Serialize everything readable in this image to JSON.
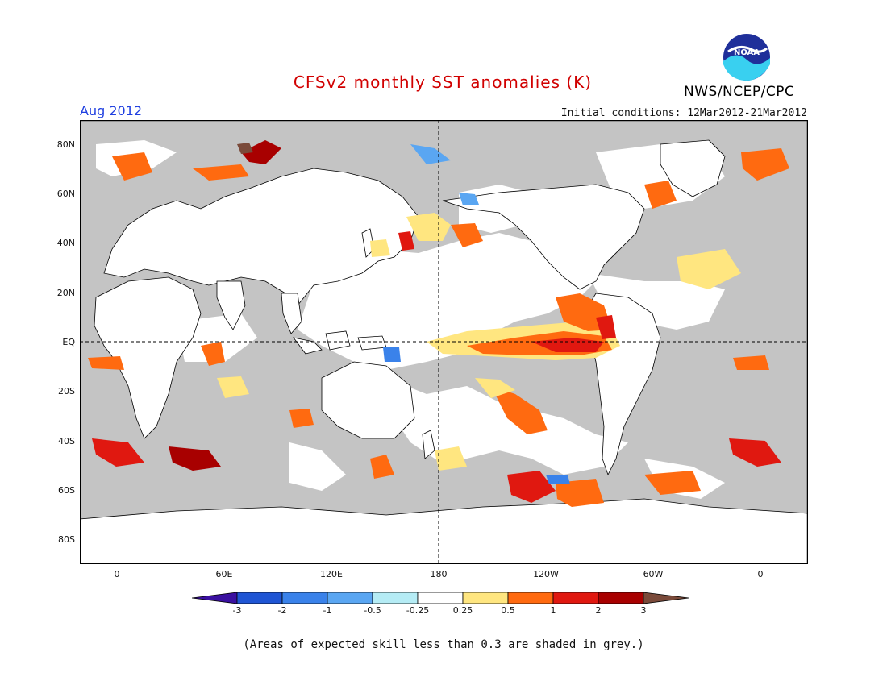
{
  "title": "CFSv2 monthly SST anomalies (K)",
  "month": "Aug 2012",
  "initial_conditions": "Initial conditions: 12Mar2012-21Mar2012",
  "agency": "NWS/NCEP/CPC",
  "logo": {
    "text": "NOAA",
    "icon": "noaa-logo-icon"
  },
  "footnote": "(Areas of expected skill less than 0.3 are shaded in grey.)",
  "map": {
    "lat_labels": [
      "80N",
      "60N",
      "40N",
      "20N",
      "EQ",
      "20S",
      "40S",
      "60S",
      "80S"
    ],
    "lon_labels": [
      "0",
      "60E",
      "120E",
      "180",
      "120W",
      "60W",
      "0"
    ],
    "colors": {
      "skill_grey": "#c4c4c4",
      "land": "#ffffff",
      "coast": "#000000"
    }
  },
  "colorbar": {
    "labels": [
      "-3",
      "-2",
      "-1",
      "-0.5",
      "-0.25",
      "0.25",
      "0.5",
      "1",
      "2",
      "3"
    ],
    "colors": [
      "#3a10a0",
      "#1f55d4",
      "#3a82ea",
      "#5aa6f2",
      "#b5ecf5",
      "#ffffff",
      "#ffe680",
      "#ff6a10",
      "#e01810",
      "#a80000",
      "#7a4a3a"
    ]
  }
}
